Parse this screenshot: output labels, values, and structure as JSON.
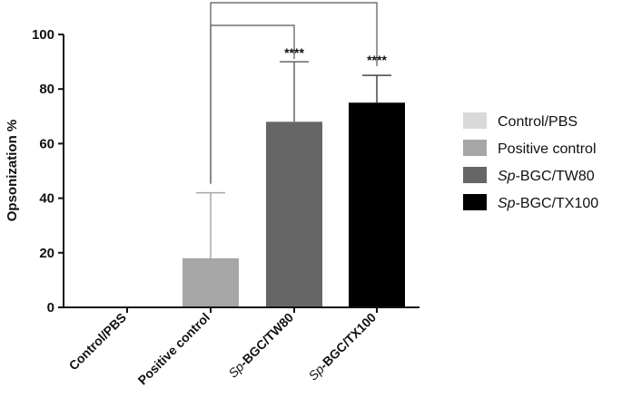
{
  "chart_data": {
    "type": "bar",
    "title": "",
    "xlabel": "",
    "ylabel": "Opsonization %",
    "ylim": [
      0,
      100
    ],
    "yticks": [
      0,
      20,
      40,
      60,
      80,
      100
    ],
    "grid": false,
    "legend_position": "right",
    "categories": [
      {
        "label": "Control/PBS",
        "italic_prefix": "",
        "rest": "Control/PBS",
        "color": "#d9d9d9"
      },
      {
        "label": "Positive control",
        "italic_prefix": "",
        "rest": "Positive control",
        "color": "#a6a6a6"
      },
      {
        "label": "Sp-BGC/TW80",
        "italic_prefix": "Sp",
        "rest": "-BGC/TW80",
        "color": "#666666"
      },
      {
        "label": "Sp-BGC/TX100",
        "italic_prefix": "Sp",
        "rest": "-BGC/TX100",
        "color": "#000000"
      }
    ],
    "values": [
      0,
      18,
      68,
      75
    ],
    "error_upper": [
      0,
      42,
      90,
      85
    ],
    "significance": [
      {
        "from": "Positive control",
        "to": "Sp-BGC/TW80",
        "label": "****"
      },
      {
        "from": "Positive control",
        "to": "Sp-BGC/TX100",
        "label": "****"
      }
    ]
  }
}
